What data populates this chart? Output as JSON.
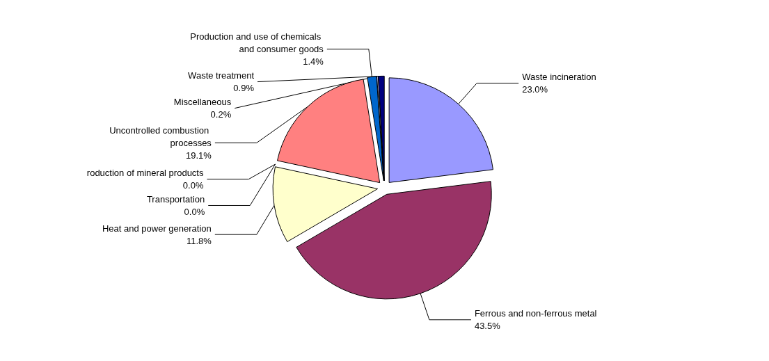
{
  "chart_data": {
    "type": "pie",
    "categories": [
      "Waste incineration",
      "Ferrous and non-ferrous metal",
      "Heat and power generation",
      "roduction of mineral products",
      "Transportation",
      "Uncontrolled combustion processes",
      "Production and use of chemicals and consumer goods",
      "Miscellaneous",
      "Waste treatment"
    ],
    "values": [
      23.0,
      43.5,
      11.8,
      0.0,
      0.0,
      19.1,
      1.4,
      0.2,
      0.9
    ],
    "value_labels": [
      "23.0%",
      "43.5%",
      "11.8%",
      "0.0%",
      "0.0%",
      "19.1%",
      "1.4%",
      "0.2%",
      "0.9%"
    ],
    "colors": [
      "#9999ff",
      "#993366",
      "#ffffcc",
      "#ccffff",
      "#660066",
      "#ff8080",
      "#0066cc",
      "#ccccff",
      "#000080"
    ],
    "legend": false
  }
}
